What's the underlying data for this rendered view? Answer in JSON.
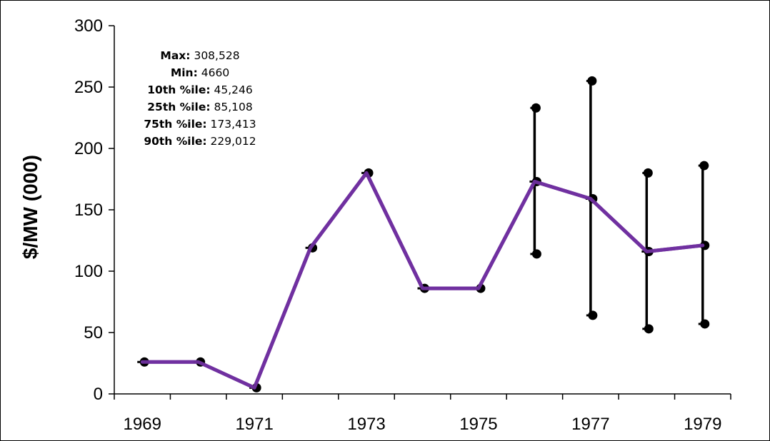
{
  "chart_data": {
    "type": "line",
    "title": "",
    "xlabel": "",
    "ylabel": "$/MW (000)",
    "ylim": [
      0,
      300
    ],
    "yticks": [
      0,
      50,
      100,
      150,
      200,
      250,
      300
    ],
    "xticks": [
      "1969",
      "1971",
      "1973",
      "1975",
      "1977",
      "1979"
    ],
    "x": [
      1969,
      1970,
      1971,
      1972,
      1973,
      1974,
      1975,
      1976,
      1977,
      1978,
      1979
    ],
    "series": [
      {
        "name": "",
        "values": [
          26,
          26,
          5,
          119,
          180,
          86,
          86,
          173,
          159,
          116,
          121
        ]
      }
    ],
    "error_ranges": [
      {
        "x": 1976,
        "low": 114,
        "high": 233
      },
      {
        "x": 1977,
        "low": 64,
        "high": 255
      },
      {
        "x": 1978,
        "low": 53,
        "high": 180
      },
      {
        "x": 1979,
        "low": 57,
        "high": 186
      }
    ],
    "annotation": [
      {
        "key": "Max:",
        "value": "308,528"
      },
      {
        "key": "Min:",
        "value": "4660"
      },
      {
        "key": "10th %ile:",
        "value": "45,246"
      },
      {
        "key": "25th %ile:",
        "value": "85,108"
      },
      {
        "key": "75th %ile:",
        "value": "173,413"
      },
      {
        "key": "90th %ile:",
        "value": "229,012"
      }
    ],
    "colors": {
      "line": "#7030a0",
      "markers": "#000000",
      "axis": "#000000"
    },
    "grid": false,
    "legend": "none"
  }
}
